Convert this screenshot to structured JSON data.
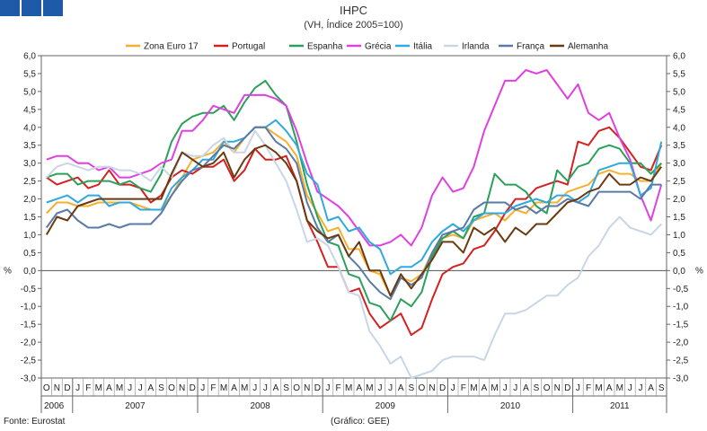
{
  "chart_data": {
    "type": "line",
    "title": "IHPC",
    "subtitle": "(VH, Índice 2005=100)",
    "ylabel_left": "%",
    "ylabel_right": "%",
    "ylim": [
      -3.0,
      6.0
    ],
    "yticks": [
      "6,0",
      "5,5",
      "5,0",
      "4,5",
      "4,0",
      "3,5",
      "3,0",
      "2,5",
      "2,0",
      "1,5",
      "1,0",
      "0,5",
      "0,0",
      "-0,5",
      "-1,0",
      "-1,5",
      "-2,0",
      "-2,5",
      "-3,0"
    ],
    "month_labels": [
      "O",
      "N",
      "D",
      "J",
      "F",
      "M",
      "A",
      "M",
      "J",
      "J",
      "A",
      "S",
      "O",
      "N",
      "D",
      "J",
      "F",
      "M",
      "A",
      "M",
      "J",
      "J",
      "A",
      "S",
      "O",
      "N",
      "D",
      "J",
      "F",
      "M",
      "A",
      "M",
      "J",
      "J",
      "A",
      "S",
      "O",
      "N",
      "D",
      "J",
      "F",
      "M",
      "A",
      "M",
      "J",
      "J",
      "A",
      "S",
      "O",
      "N",
      "D",
      "J",
      "F",
      "M",
      "A",
      "M",
      "J",
      "J",
      "A",
      "S"
    ],
    "year_labels": [
      "2006",
      "2007",
      "2008",
      "2009",
      "2010",
      "2011"
    ],
    "legend_position": "top",
    "source": "Fonte: Eurostat",
    "credit": "(Gráfico: GEE)",
    "series": [
      {
        "name": "Zona Euro 17",
        "color": "#f5b030",
        "values": [
          1.6,
          1.9,
          1.9,
          1.8,
          1.8,
          1.9,
          1.9,
          1.9,
          1.9,
          1.8,
          1.7,
          1.7,
          2.1,
          2.6,
          3.1,
          3.2,
          3.3,
          3.6,
          3.3,
          3.7,
          4.0,
          4.0,
          3.8,
          3.6,
          3.2,
          2.1,
          1.6,
          1.1,
          1.2,
          0.6,
          0.6,
          0.0,
          -0.1,
          -0.7,
          -0.2,
          -0.3,
          -0.1,
          0.5,
          0.9,
          1.0,
          0.9,
          1.4,
          1.5,
          1.6,
          1.4,
          1.7,
          1.6,
          1.9,
          1.9,
          1.9,
          2.2,
          2.3,
          2.4,
          2.7,
          2.8,
          2.7,
          2.7,
          2.5,
          2.5,
          3.0
        ]
      },
      {
        "name": "Portugal",
        "color": "#d42020",
        "values": [
          2.6,
          2.4,
          2.5,
          2.6,
          2.3,
          2.4,
          2.8,
          2.4,
          2.4,
          2.3,
          1.9,
          2.1,
          2.6,
          2.8,
          2.7,
          2.9,
          2.9,
          3.1,
          2.5,
          2.8,
          3.4,
          3.1,
          3.1,
          3.2,
          2.5,
          1.4,
          0.8,
          0.1,
          0.1,
          -0.6,
          -0.5,
          -1.2,
          -1.6,
          -1.4,
          -1.2,
          -1.8,
          -1.6,
          -0.8,
          -0.1,
          0.1,
          0.2,
          0.6,
          0.7,
          1.1,
          1.6,
          2.0,
          2.0,
          2.3,
          2.4,
          2.5,
          2.4,
          3.6,
          3.5,
          3.9,
          4.0,
          3.7,
          3.3,
          2.9,
          2.8,
          3.5
        ]
      },
      {
        "name": "Espanha",
        "color": "#2ba05a",
        "values": [
          2.6,
          2.7,
          2.7,
          2.4,
          2.5,
          2.5,
          2.5,
          2.4,
          2.5,
          2.3,
          2.2,
          2.7,
          3.6,
          4.1,
          4.3,
          4.4,
          4.4,
          4.6,
          4.2,
          4.7,
          5.1,
          5.3,
          4.9,
          4.6,
          3.6,
          2.4,
          1.5,
          0.8,
          0.7,
          -0.1,
          -0.2,
          -0.9,
          -1.0,
          -1.4,
          -0.8,
          -1.0,
          -0.6,
          0.4,
          0.9,
          1.1,
          0.9,
          1.5,
          1.6,
          2.7,
          2.4,
          2.4,
          2.2,
          1.8,
          1.6,
          2.8,
          2.5,
          2.9,
          3.0,
          3.4,
          3.5,
          3.4,
          3.0,
          3.0,
          2.7,
          3.0
        ]
      },
      {
        "name": "Grécia",
        "color": "#e040e0",
        "values": [
          3.1,
          3.2,
          3.2,
          3.0,
          3.0,
          2.8,
          2.9,
          2.6,
          2.6,
          2.7,
          2.8,
          3.0,
          3.1,
          3.9,
          3.9,
          4.2,
          4.6,
          4.5,
          4.4,
          4.9,
          4.9,
          4.9,
          4.8,
          4.6,
          3.9,
          3.0,
          2.2,
          2.0,
          1.8,
          1.5,
          1.1,
          0.7,
          0.7,
          0.8,
          1.0,
          0.7,
          1.2,
          2.1,
          2.6,
          2.2,
          2.3,
          2.9,
          3.9,
          4.6,
          5.3,
          5.3,
          5.6,
          5.5,
          5.6,
          5.2,
          4.8,
          5.2,
          4.4,
          4.2,
          4.4,
          3.7,
          3.1,
          2.1,
          1.4,
          2.4
        ]
      },
      {
        "name": "Itália",
        "color": "#30a8e0",
        "values": [
          1.9,
          2.0,
          2.1,
          1.9,
          2.1,
          2.1,
          1.8,
          1.9,
          1.9,
          1.7,
          1.7,
          1.7,
          2.3,
          2.6,
          2.8,
          3.1,
          3.1,
          3.6,
          3.6,
          3.7,
          4.0,
          4.0,
          4.2,
          3.9,
          3.5,
          2.7,
          2.4,
          1.4,
          1.5,
          1.1,
          1.2,
          0.8,
          0.6,
          -0.1,
          0.1,
          0.1,
          0.3,
          0.8,
          1.1,
          1.3,
          1.1,
          1.4,
          1.6,
          1.6,
          1.6,
          1.8,
          1.9,
          2.0,
          1.9,
          2.1,
          2.1,
          1.9,
          2.1,
          2.8,
          2.9,
          3.0,
          3.0,
          2.1,
          2.3,
          3.6
        ]
      },
      {
        "name": "Irlanda",
        "color": "#c8d6e6",
        "values": [
          2.6,
          2.9,
          3.0,
          2.9,
          2.8,
          2.9,
          2.9,
          2.8,
          2.8,
          2.7,
          2.5,
          2.9,
          2.6,
          3.3,
          3.2,
          3.2,
          3.5,
          3.7,
          3.3,
          3.3,
          3.9,
          3.5,
          3.0,
          2.5,
          1.7,
          0.8,
          0.9,
          0.7,
          0.1,
          -0.6,
          -0.7,
          -1.7,
          -2.1,
          -2.6,
          -2.4,
          -3.0,
          -2.9,
          -2.8,
          -2.5,
          -2.4,
          -2.4,
          -2.4,
          -2.5,
          -1.8,
          -1.2,
          -1.2,
          -1.1,
          -0.9,
          -0.7,
          -0.7,
          -0.4,
          -0.2,
          0.4,
          0.7,
          1.2,
          1.5,
          1.2,
          1.1,
          1.0,
          1.3
        ]
      },
      {
        "name": "França",
        "color": "#5a7aa8",
        "values": [
          1.2,
          1.6,
          1.7,
          1.4,
          1.2,
          1.2,
          1.3,
          1.2,
          1.3,
          1.3,
          1.3,
          1.6,
          2.1,
          2.5,
          2.8,
          2.9,
          3.2,
          3.5,
          3.4,
          3.7,
          4.0,
          4.0,
          3.6,
          3.4,
          3.0,
          1.9,
          1.2,
          0.8,
          1.0,
          0.4,
          0.1,
          -0.3,
          -0.6,
          -0.8,
          -0.2,
          -0.4,
          -0.2,
          0.5,
          1.0,
          1.1,
          1.2,
          1.7,
          1.9,
          1.9,
          1.9,
          1.7,
          1.8,
          1.6,
          1.8,
          1.8,
          2.0,
          1.9,
          1.8,
          2.2,
          2.2,
          2.2,
          2.2,
          2.0,
          2.4,
          2.4
        ]
      },
      {
        "name": "Alemanha",
        "color": "#6b3a10",
        "values": [
          1.0,
          1.5,
          1.4,
          1.8,
          1.9,
          2.0,
          2.0,
          2.0,
          2.0,
          2.0,
          2.0,
          2.0,
          2.7,
          3.3,
          3.1,
          2.9,
          3.0,
          3.3,
          2.6,
          3.1,
          3.4,
          3.5,
          3.3,
          3.0,
          2.5,
          1.4,
          1.1,
          0.9,
          1.0,
          0.4,
          0.8,
          0.0,
          0.0,
          -0.7,
          -0.1,
          -0.5,
          -0.1,
          0.3,
          0.8,
          0.8,
          0.5,
          1.2,
          1.0,
          1.2,
          0.8,
          1.2,
          1.0,
          1.3,
          1.3,
          1.6,
          1.9,
          2.0,
          2.2,
          2.3,
          2.7,
          2.4,
          2.4,
          2.6,
          2.5,
          2.9
        ]
      }
    ]
  }
}
